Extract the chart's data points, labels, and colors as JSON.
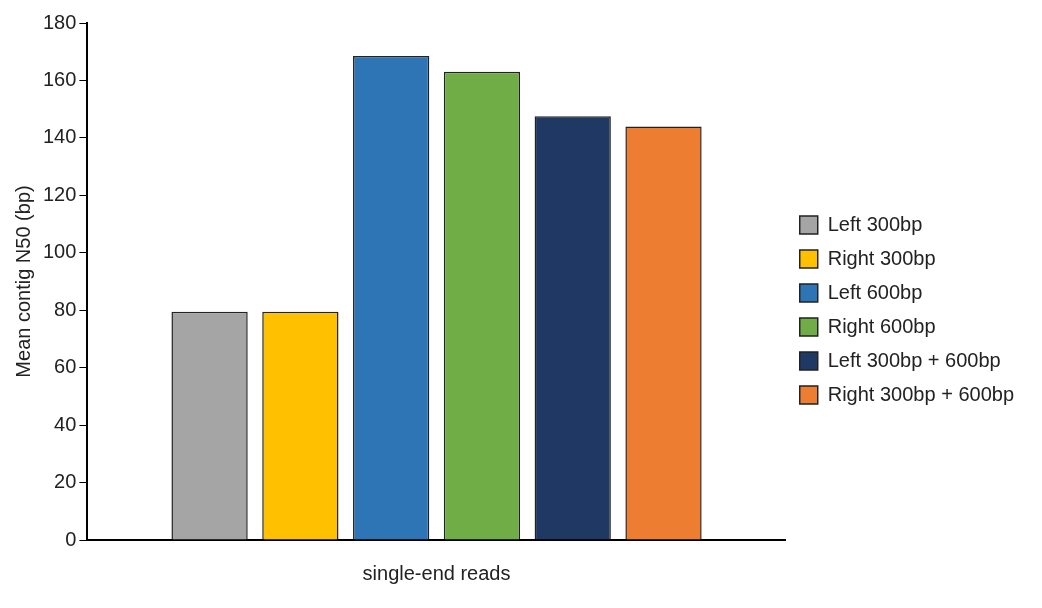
{
  "chart_data": {
    "type": "bar",
    "ylabel": "Mean contig N50 (bp)",
    "categories": [
      "single-end reads"
    ],
    "series": [
      {
        "name": "Left 300bp",
        "color": "#a5a5a5",
        "values": [
          79.5
        ]
      },
      {
        "name": "Right 300bp",
        "color": "#ffc000",
        "values": [
          79.5
        ]
      },
      {
        "name": "Left 600bp",
        "color": "#2e75b6",
        "values": [
          168.5
        ]
      },
      {
        "name": "Right 600bp",
        "color": "#70ad47",
        "values": [
          163
        ]
      },
      {
        "name": "Left 300bp + 600bp",
        "color": "#203864",
        "values": [
          147.5
        ]
      },
      {
        "name": "Right 300bp + 600bp",
        "color": "#ed7d31",
        "values": [
          144
        ]
      }
    ],
    "ylim": [
      0,
      180
    ],
    "yticks": [
      0,
      20,
      40,
      60,
      80,
      100,
      120,
      140,
      160,
      180
    ],
    "grid": false,
    "legend": "right"
  }
}
